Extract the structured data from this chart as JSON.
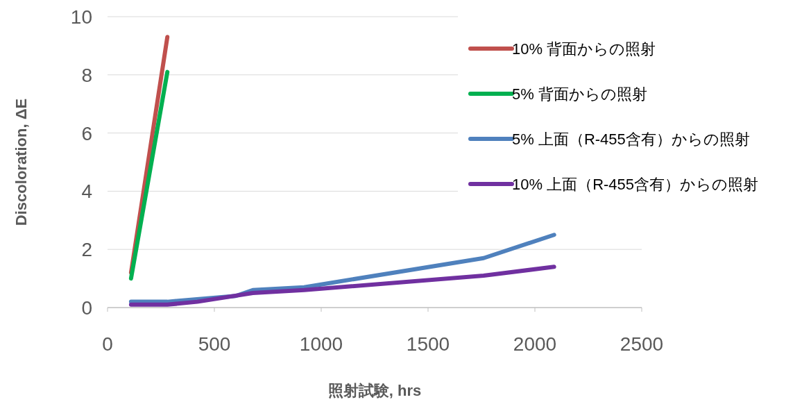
{
  "chart_data": {
    "type": "line",
    "xlabel": "照射試験, hrs",
    "ylabel": "Discoloration, ΔE",
    "xlim": [
      0,
      2500
    ],
    "ylim": [
      0,
      10
    ],
    "xticks": [
      0,
      500,
      1000,
      1500,
      2000,
      2500
    ],
    "yticks": [
      0,
      2,
      4,
      6,
      8,
      10
    ],
    "grid": "y",
    "legend": "top right",
    "series": [
      {
        "name": "10% 背面からの照射",
        "color": "#c0504d",
        "x": [
          110,
          280
        ],
        "values": [
          1.2,
          9.3
        ]
      },
      {
        "name": "5% 背面からの照射",
        "color": "#00b050",
        "x": [
          110,
          280
        ],
        "values": [
          1.0,
          8.1
        ]
      },
      {
        "name": "5% 上面（R-455含有）からの照射",
        "color": "#4f81bd",
        "x": [
          110,
          280,
          600,
          680,
          920,
          1760,
          2090
        ],
        "values": [
          0.2,
          0.2,
          0.4,
          0.6,
          0.7,
          1.7,
          2.5
        ]
      },
      {
        "name": "10% 上面（R-455含有）からの照射",
        "color": "#7030a0",
        "x": [
          110,
          280,
          420,
          680,
          920,
          1760,
          2090
        ],
        "values": [
          0.1,
          0.1,
          0.2,
          0.5,
          0.6,
          1.1,
          1.4
        ]
      }
    ]
  }
}
